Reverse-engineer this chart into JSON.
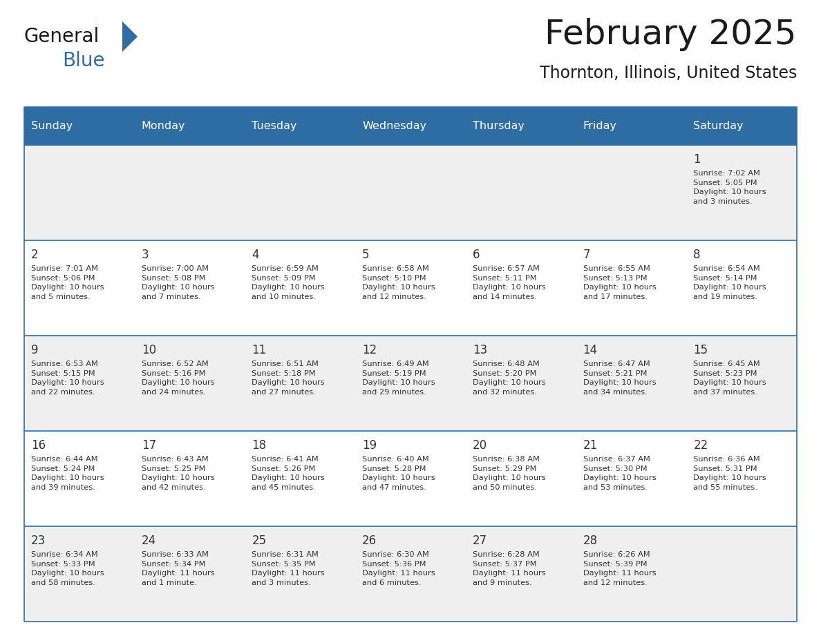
{
  "title": "February 2025",
  "subtitle": "Thornton, Illinois, United States",
  "header_bg_color": "#2E6DA4",
  "header_text_color": "#FFFFFF",
  "cell_bg_color": "#EFEFEF",
  "cell_bg_color_white": "#FFFFFF",
  "grid_line_color": "#2E6DA4",
  "day_number_color": "#333333",
  "cell_text_color": "#333333",
  "days_of_week": [
    "Sunday",
    "Monday",
    "Tuesday",
    "Wednesday",
    "Thursday",
    "Friday",
    "Saturday"
  ],
  "logo_text1": "General",
  "logo_text2": "Blue",
  "logo_triangle_color": "#2E6DA4",
  "weeks": [
    [
      {
        "day": "",
        "info": ""
      },
      {
        "day": "",
        "info": ""
      },
      {
        "day": "",
        "info": ""
      },
      {
        "day": "",
        "info": ""
      },
      {
        "day": "",
        "info": ""
      },
      {
        "day": "",
        "info": ""
      },
      {
        "day": "1",
        "info": "Sunrise: 7:02 AM\nSunset: 5:05 PM\nDaylight: 10 hours\nand 3 minutes."
      }
    ],
    [
      {
        "day": "2",
        "info": "Sunrise: 7:01 AM\nSunset: 5:06 PM\nDaylight: 10 hours\nand 5 minutes."
      },
      {
        "day": "3",
        "info": "Sunrise: 7:00 AM\nSunset: 5:08 PM\nDaylight: 10 hours\nand 7 minutes."
      },
      {
        "day": "4",
        "info": "Sunrise: 6:59 AM\nSunset: 5:09 PM\nDaylight: 10 hours\nand 10 minutes."
      },
      {
        "day": "5",
        "info": "Sunrise: 6:58 AM\nSunset: 5:10 PM\nDaylight: 10 hours\nand 12 minutes."
      },
      {
        "day": "6",
        "info": "Sunrise: 6:57 AM\nSunset: 5:11 PM\nDaylight: 10 hours\nand 14 minutes."
      },
      {
        "day": "7",
        "info": "Sunrise: 6:55 AM\nSunset: 5:13 PM\nDaylight: 10 hours\nand 17 minutes."
      },
      {
        "day": "8",
        "info": "Sunrise: 6:54 AM\nSunset: 5:14 PM\nDaylight: 10 hours\nand 19 minutes."
      }
    ],
    [
      {
        "day": "9",
        "info": "Sunrise: 6:53 AM\nSunset: 5:15 PM\nDaylight: 10 hours\nand 22 minutes."
      },
      {
        "day": "10",
        "info": "Sunrise: 6:52 AM\nSunset: 5:16 PM\nDaylight: 10 hours\nand 24 minutes."
      },
      {
        "day": "11",
        "info": "Sunrise: 6:51 AM\nSunset: 5:18 PM\nDaylight: 10 hours\nand 27 minutes."
      },
      {
        "day": "12",
        "info": "Sunrise: 6:49 AM\nSunset: 5:19 PM\nDaylight: 10 hours\nand 29 minutes."
      },
      {
        "day": "13",
        "info": "Sunrise: 6:48 AM\nSunset: 5:20 PM\nDaylight: 10 hours\nand 32 minutes."
      },
      {
        "day": "14",
        "info": "Sunrise: 6:47 AM\nSunset: 5:21 PM\nDaylight: 10 hours\nand 34 minutes."
      },
      {
        "day": "15",
        "info": "Sunrise: 6:45 AM\nSunset: 5:23 PM\nDaylight: 10 hours\nand 37 minutes."
      }
    ],
    [
      {
        "day": "16",
        "info": "Sunrise: 6:44 AM\nSunset: 5:24 PM\nDaylight: 10 hours\nand 39 minutes."
      },
      {
        "day": "17",
        "info": "Sunrise: 6:43 AM\nSunset: 5:25 PM\nDaylight: 10 hours\nand 42 minutes."
      },
      {
        "day": "18",
        "info": "Sunrise: 6:41 AM\nSunset: 5:26 PM\nDaylight: 10 hours\nand 45 minutes."
      },
      {
        "day": "19",
        "info": "Sunrise: 6:40 AM\nSunset: 5:28 PM\nDaylight: 10 hours\nand 47 minutes."
      },
      {
        "day": "20",
        "info": "Sunrise: 6:38 AM\nSunset: 5:29 PM\nDaylight: 10 hours\nand 50 minutes."
      },
      {
        "day": "21",
        "info": "Sunrise: 6:37 AM\nSunset: 5:30 PM\nDaylight: 10 hours\nand 53 minutes."
      },
      {
        "day": "22",
        "info": "Sunrise: 6:36 AM\nSunset: 5:31 PM\nDaylight: 10 hours\nand 55 minutes."
      }
    ],
    [
      {
        "day": "23",
        "info": "Sunrise: 6:34 AM\nSunset: 5:33 PM\nDaylight: 10 hours\nand 58 minutes."
      },
      {
        "day": "24",
        "info": "Sunrise: 6:33 AM\nSunset: 5:34 PM\nDaylight: 11 hours\nand 1 minute."
      },
      {
        "day": "25",
        "info": "Sunrise: 6:31 AM\nSunset: 5:35 PM\nDaylight: 11 hours\nand 3 minutes."
      },
      {
        "day": "26",
        "info": "Sunrise: 6:30 AM\nSunset: 5:36 PM\nDaylight: 11 hours\nand 6 minutes."
      },
      {
        "day": "27",
        "info": "Sunrise: 6:28 AM\nSunset: 5:37 PM\nDaylight: 11 hours\nand 9 minutes."
      },
      {
        "day": "28",
        "info": "Sunrise: 6:26 AM\nSunset: 5:39 PM\nDaylight: 11 hours\nand 12 minutes."
      },
      {
        "day": "",
        "info": ""
      }
    ]
  ]
}
